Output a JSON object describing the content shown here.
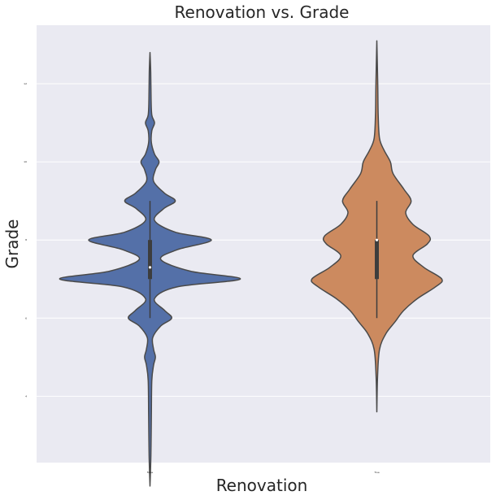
{
  "chart_data": {
    "type": "violin",
    "title": "Renovation vs. Grade",
    "xlabel": "Renovation",
    "ylabel": "Grade",
    "categories": [
      "False",
      "True"
    ],
    "ylim": [
      2.3,
      13.5
    ],
    "yticks": [
      4,
      6,
      8,
      10,
      12
    ],
    "grid": true,
    "colors": {
      "False": "#5470a8",
      "True": "#cc8a5f",
      "background": "#eaeaf2",
      "grid": "#ffffff",
      "outline": "#4a4a4a"
    },
    "violins": [
      {
        "category": "False",
        "box": {
          "q1": 7,
          "median": 7.3,
          "q3": 8,
          "whisker_low": 6,
          "whisker_high": 9
        },
        "density": [
          [
            1.7,
            0.0
          ],
          [
            2.5,
            0.01
          ],
          [
            3.5,
            0.015
          ],
          [
            4.4,
            0.02
          ],
          [
            4.8,
            0.04
          ],
          [
            5.0,
            0.06
          ],
          [
            5.2,
            0.04
          ],
          [
            5.5,
            0.03
          ],
          [
            5.8,
            0.12
          ],
          [
            6.0,
            0.24
          ],
          [
            6.2,
            0.16
          ],
          [
            6.5,
            0.05
          ],
          [
            6.8,
            0.3
          ],
          [
            7.0,
            1.0
          ],
          [
            7.2,
            0.45
          ],
          [
            7.5,
            0.12
          ],
          [
            7.75,
            0.3
          ],
          [
            8.0,
            0.68
          ],
          [
            8.2,
            0.28
          ],
          [
            8.5,
            0.05
          ],
          [
            8.8,
            0.15
          ],
          [
            9.0,
            0.28
          ],
          [
            9.2,
            0.16
          ],
          [
            9.5,
            0.04
          ],
          [
            9.8,
            0.06
          ],
          [
            10.0,
            0.1
          ],
          [
            10.2,
            0.05
          ],
          [
            10.5,
            0.015
          ],
          [
            10.8,
            0.02
          ],
          [
            11.0,
            0.05
          ],
          [
            11.2,
            0.02
          ],
          [
            11.6,
            0.012
          ],
          [
            12.3,
            0.008
          ],
          [
            12.8,
            0.0
          ]
        ]
      },
      {
        "category": "True",
        "box": {
          "q1": 7,
          "median": 8,
          "q3": 8,
          "whisker_low": 6,
          "whisker_high": 9
        },
        "density": [
          [
            3.6,
            0.0
          ],
          [
            4.5,
            0.008
          ],
          [
            5.2,
            0.03
          ],
          [
            5.6,
            0.1
          ],
          [
            5.9,
            0.2
          ],
          [
            6.2,
            0.3
          ],
          [
            6.5,
            0.45
          ],
          [
            6.8,
            0.65
          ],
          [
            7.0,
            0.72
          ],
          [
            7.3,
            0.52
          ],
          [
            7.6,
            0.4
          ],
          [
            7.9,
            0.56
          ],
          [
            8.1,
            0.58
          ],
          [
            8.4,
            0.4
          ],
          [
            8.7,
            0.32
          ],
          [
            9.0,
            0.38
          ],
          [
            9.3,
            0.3
          ],
          [
            9.7,
            0.18
          ],
          [
            10.0,
            0.15
          ],
          [
            10.3,
            0.08
          ],
          [
            10.6,
            0.03
          ],
          [
            11.2,
            0.015
          ],
          [
            12.0,
            0.01
          ],
          [
            13.1,
            0.0
          ]
        ]
      }
    ]
  }
}
